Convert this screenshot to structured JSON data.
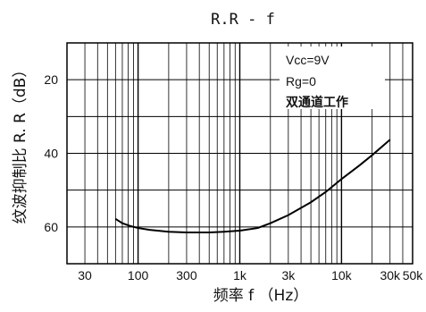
{
  "chart_data": {
    "type": "line",
    "title": "R.R - f",
    "xlabel": "频率 f （Hz）",
    "ylabel": "纹波抑制比 R. R（dB）",
    "x_scale": "log",
    "xlim": [
      20,
      50000
    ],
    "ylim": [
      10,
      70
    ],
    "y_inverted": true,
    "grid": true,
    "x_ticks": [
      {
        "value": 30,
        "label": "30"
      },
      {
        "value": 100,
        "label": "100"
      },
      {
        "value": 300,
        "label": "300"
      },
      {
        "value": 1000,
        "label": "1k"
      },
      {
        "value": 3000,
        "label": "3k"
      },
      {
        "value": 10000,
        "label": "10k"
      },
      {
        "value": 30000,
        "label": "30k"
      },
      {
        "value": 50000,
        "label": "50k"
      }
    ],
    "y_ticks": [
      {
        "value": 20,
        "label": "20"
      },
      {
        "value": 40,
        "label": "40"
      },
      {
        "value": 60,
        "label": "60"
      }
    ],
    "annotations": [
      "Vcc=9V",
      "Rg=0",
      "双通道工作"
    ],
    "series": [
      {
        "color": "#000000",
        "x": [
          60,
          70,
          85,
          100,
          130,
          200,
          300,
          500,
          700,
          1000,
          1500,
          2000,
          3000,
          5000,
          7000,
          10000,
          15000,
          20000,
          30000
        ],
        "y": [
          57.8,
          59,
          59.8,
          60.3,
          60.8,
          61.3,
          61.5,
          61.5,
          61.3,
          61,
          60.3,
          59,
          56.8,
          53.3,
          50.5,
          47,
          43.3,
          40.5,
          36.3
        ]
      }
    ]
  }
}
